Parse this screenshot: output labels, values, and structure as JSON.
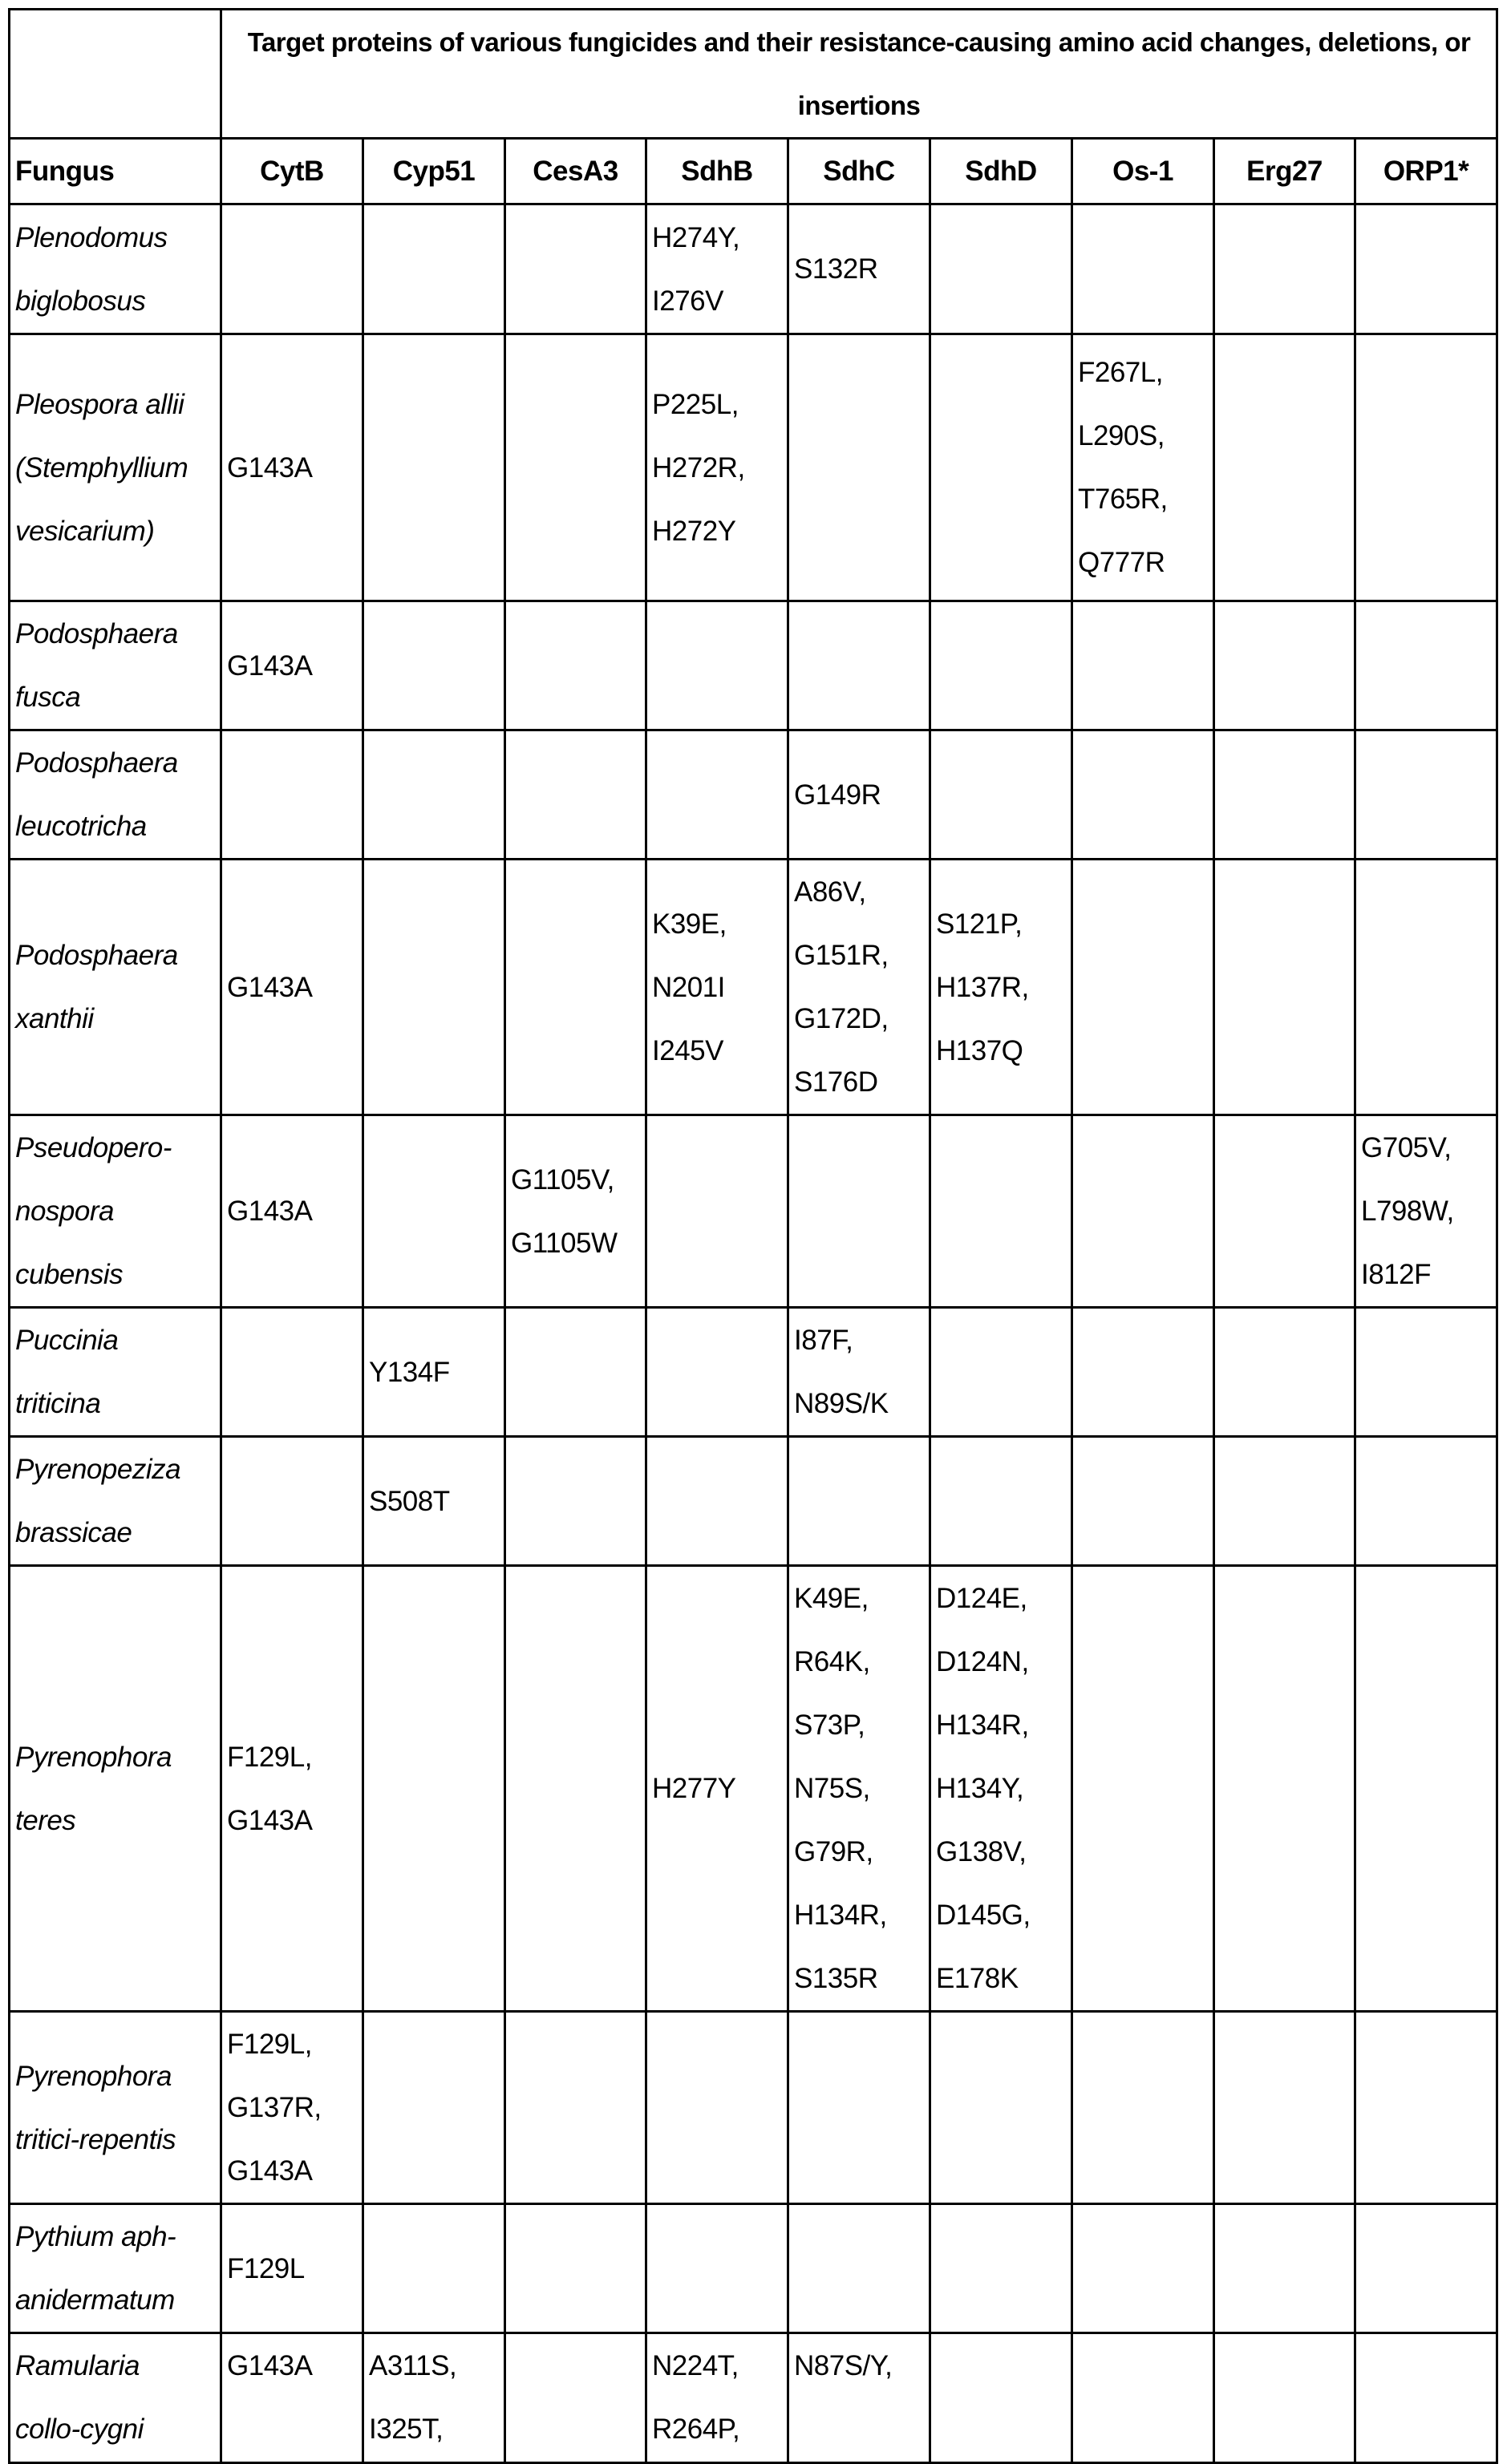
{
  "table": {
    "title": "Target proteins of various fungicides and their resistance-causing amino acid changes, deletions, or insertions",
    "columns": [
      "Fungus",
      "CytB",
      "Cyp51",
      "CesA3",
      "SdhB",
      "SdhC",
      "SdhD",
      "Os-1",
      "Erg27",
      "ORP1*"
    ],
    "rows": [
      [
        [
          "Plenodomus",
          "biglobosus"
        ],
        [],
        [],
        [],
        [
          "H274Y,",
          "I276V"
        ],
        [
          "S132R"
        ],
        [],
        [],
        [],
        []
      ],
      [
        [
          "Pleospora allii",
          "(Stemphyllium",
          "vesicarium)"
        ],
        [
          "G143A"
        ],
        [],
        [],
        [
          "P225L,",
          "H272R,",
          "H272Y"
        ],
        [],
        [],
        [
          "F267L,",
          "L290S,",
          "T765R,",
          "Q777R"
        ],
        [],
        []
      ],
      [
        [
          "Podosphaera",
          "fusca"
        ],
        [
          "G143A"
        ],
        [],
        [],
        [],
        [],
        [],
        [],
        [],
        []
      ],
      [
        [
          "Podosphaera",
          "leucotricha"
        ],
        [],
        [],
        [],
        [],
        [
          "G149R"
        ],
        [],
        [],
        [],
        []
      ],
      [
        [
          "Podosphaera",
          "xanthii"
        ],
        [
          "G143A"
        ],
        [],
        [],
        [
          "K39E,",
          "N201I",
          "I245V"
        ],
        [
          "A86V,",
          "G151R,",
          "G172D,",
          "S176D"
        ],
        [
          "S121P,",
          "H137R,",
          "H137Q"
        ],
        [],
        [],
        []
      ],
      [
        [
          "Pseudopero-",
          "nospora",
          "cubensis"
        ],
        [
          "G143A"
        ],
        [],
        [
          "G1105V,",
          "G1105W"
        ],
        [],
        [],
        [],
        [],
        [],
        [
          "G705V,",
          "L798W,",
          "I812F"
        ]
      ],
      [
        [
          "Puccinia",
          "triticina"
        ],
        [],
        [
          "Y134F"
        ],
        [],
        [],
        [
          "I87F,",
          "N89S/K"
        ],
        [],
        [],
        [],
        []
      ],
      [
        [
          "Pyrenopeziza",
          "brassicae"
        ],
        [],
        [
          "S508T"
        ],
        [],
        [],
        [],
        [],
        [],
        [],
        []
      ],
      [
        [
          "Pyrenophora",
          "teres"
        ],
        [
          "F129L,",
          "G143A"
        ],
        [],
        [],
        [
          "H277Y"
        ],
        [
          "K49E,",
          "R64K,",
          "S73P,",
          "N75S,",
          "G79R,",
          "H134R,",
          "S135R"
        ],
        [
          "D124E,",
          "D124N,",
          "H134R,",
          "H134Y,",
          "G138V,",
          "D145G,",
          "E178K"
        ],
        [],
        [],
        []
      ],
      [
        [
          "Pyrenophora",
          "tritici-repentis"
        ],
        [
          "F129L,",
          "G137R,",
          "G143A"
        ],
        [],
        [],
        [],
        [],
        [],
        [],
        [],
        []
      ],
      [
        [
          "Pythium aph-",
          "anidermatum"
        ],
        [
          "F129L"
        ],
        [],
        [],
        [],
        [],
        [],
        [],
        [],
        []
      ],
      [
        [
          "Ramularia",
          "collo-cygni"
        ],
        [
          "G143A"
        ],
        [
          "A311S,",
          "I325T,"
        ],
        [],
        [
          "N224T,",
          "R264P,"
        ],
        [
          "N87S/Y,"
        ],
        [],
        [],
        [],
        []
      ]
    ]
  }
}
